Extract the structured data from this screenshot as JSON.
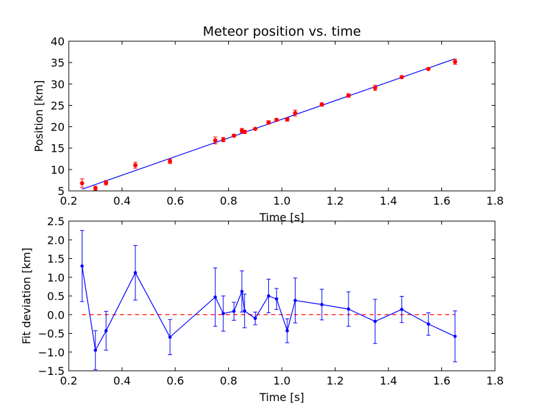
{
  "chart_data": [
    {
      "type": "scatter",
      "title": "Meteor position vs. time",
      "xlabel": "Time [s]",
      "ylabel": "Position [km]",
      "xlim": [
        0.2,
        1.8
      ],
      "ylim": [
        5,
        40
      ],
      "xticks": [
        "0.2",
        "0.4",
        "0.6",
        "0.8",
        "1.0",
        "1.2",
        "1.4",
        "1.6",
        "1.8"
      ],
      "yticks": [
        "5",
        "10",
        "15",
        "20",
        "25",
        "30",
        "35",
        "40"
      ],
      "grid": false,
      "data_color": "#ff0000",
      "fit_color": "#0000ff",
      "fit_line": {
        "x": [
          0.25,
          1.65
        ],
        "y": [
          5.4,
          35.9
        ]
      },
      "points": [
        {
          "x": 0.25,
          "y": 6.8,
          "err": 1.0
        },
        {
          "x": 0.3,
          "y": 5.6,
          "err": 0.5
        },
        {
          "x": 0.34,
          "y": 6.9,
          "err": 0.5
        },
        {
          "x": 0.45,
          "y": 11.0,
          "err": 0.7
        },
        {
          "x": 0.58,
          "y": 11.9,
          "err": 0.5
        },
        {
          "x": 0.75,
          "y": 16.8,
          "err": 0.8
        },
        {
          "x": 0.78,
          "y": 17.0,
          "err": 0.5
        },
        {
          "x": 0.82,
          "y": 17.9,
          "err": 0.3
        },
        {
          "x": 0.85,
          "y": 19.1,
          "err": 0.5
        },
        {
          "x": 0.86,
          "y": 18.8,
          "err": 0.4
        },
        {
          "x": 0.9,
          "y": 19.5,
          "err": 0.2
        },
        {
          "x": 0.95,
          "y": 21.0,
          "err": 0.4
        },
        {
          "x": 0.98,
          "y": 21.6,
          "err": 0.3
        },
        {
          "x": 1.02,
          "y": 21.7,
          "err": 0.4
        },
        {
          "x": 1.05,
          "y": 23.2,
          "err": 0.7
        },
        {
          "x": 1.15,
          "y": 25.2,
          "err": 0.4
        },
        {
          "x": 1.25,
          "y": 27.3,
          "err": 0.4
        },
        {
          "x": 1.35,
          "y": 29.1,
          "err": 0.6
        },
        {
          "x": 1.45,
          "y": 31.6,
          "err": 0.3
        },
        {
          "x": 1.55,
          "y": 33.5,
          "err": 0.2
        },
        {
          "x": 1.65,
          "y": 35.2,
          "err": 0.6
        }
      ]
    },
    {
      "type": "line",
      "title": "",
      "xlabel": "Time [s]",
      "ylabel": "Fit deviation [km]",
      "xlim": [
        0.2,
        1.8
      ],
      "ylim": [
        -1.5,
        2.5
      ],
      "xticks": [
        "0.2",
        "0.4",
        "0.6",
        "0.8",
        "1.0",
        "1.2",
        "1.4",
        "1.6",
        "1.8"
      ],
      "yticks": [
        "−1.5",
        "−1.0",
        "−0.5",
        "0.0",
        "0.5",
        "1.0",
        "1.5",
        "2.0",
        "2.5"
      ],
      "grid": false,
      "series_color": "#0000ff",
      "zero_line_color": "#ff0000",
      "zero_line_style": "dashed",
      "points": [
        {
          "x": 0.25,
          "y": 1.3,
          "err": 0.95
        },
        {
          "x": 0.3,
          "y": -0.95,
          "err": 0.52
        },
        {
          "x": 0.34,
          "y": -0.43,
          "err": 0.52
        },
        {
          "x": 0.45,
          "y": 1.12,
          "err": 0.73
        },
        {
          "x": 0.58,
          "y": -0.6,
          "err": 0.47
        },
        {
          "x": 0.75,
          "y": 0.47,
          "err": 0.78
        },
        {
          "x": 0.78,
          "y": 0.03,
          "err": 0.47
        },
        {
          "x": 0.82,
          "y": 0.09,
          "err": 0.24
        },
        {
          "x": 0.85,
          "y": 0.62,
          "err": 0.55
        },
        {
          "x": 0.86,
          "y": 0.1,
          "err": 0.45
        },
        {
          "x": 0.9,
          "y": -0.1,
          "err": 0.17
        },
        {
          "x": 0.95,
          "y": 0.5,
          "err": 0.45
        },
        {
          "x": 0.98,
          "y": 0.42,
          "err": 0.28
        },
        {
          "x": 1.02,
          "y": -0.43,
          "err": 0.32
        },
        {
          "x": 1.05,
          "y": 0.38,
          "err": 0.6
        },
        {
          "x": 1.15,
          "y": 0.27,
          "err": 0.41
        },
        {
          "x": 1.25,
          "y": 0.15,
          "err": 0.46
        },
        {
          "x": 1.35,
          "y": -0.18,
          "err": 0.59
        },
        {
          "x": 1.45,
          "y": 0.14,
          "err": 0.35
        },
        {
          "x": 1.55,
          "y": -0.25,
          "err": 0.3
        },
        {
          "x": 1.65,
          "y": -0.58,
          "err": 0.68
        }
      ]
    }
  ]
}
